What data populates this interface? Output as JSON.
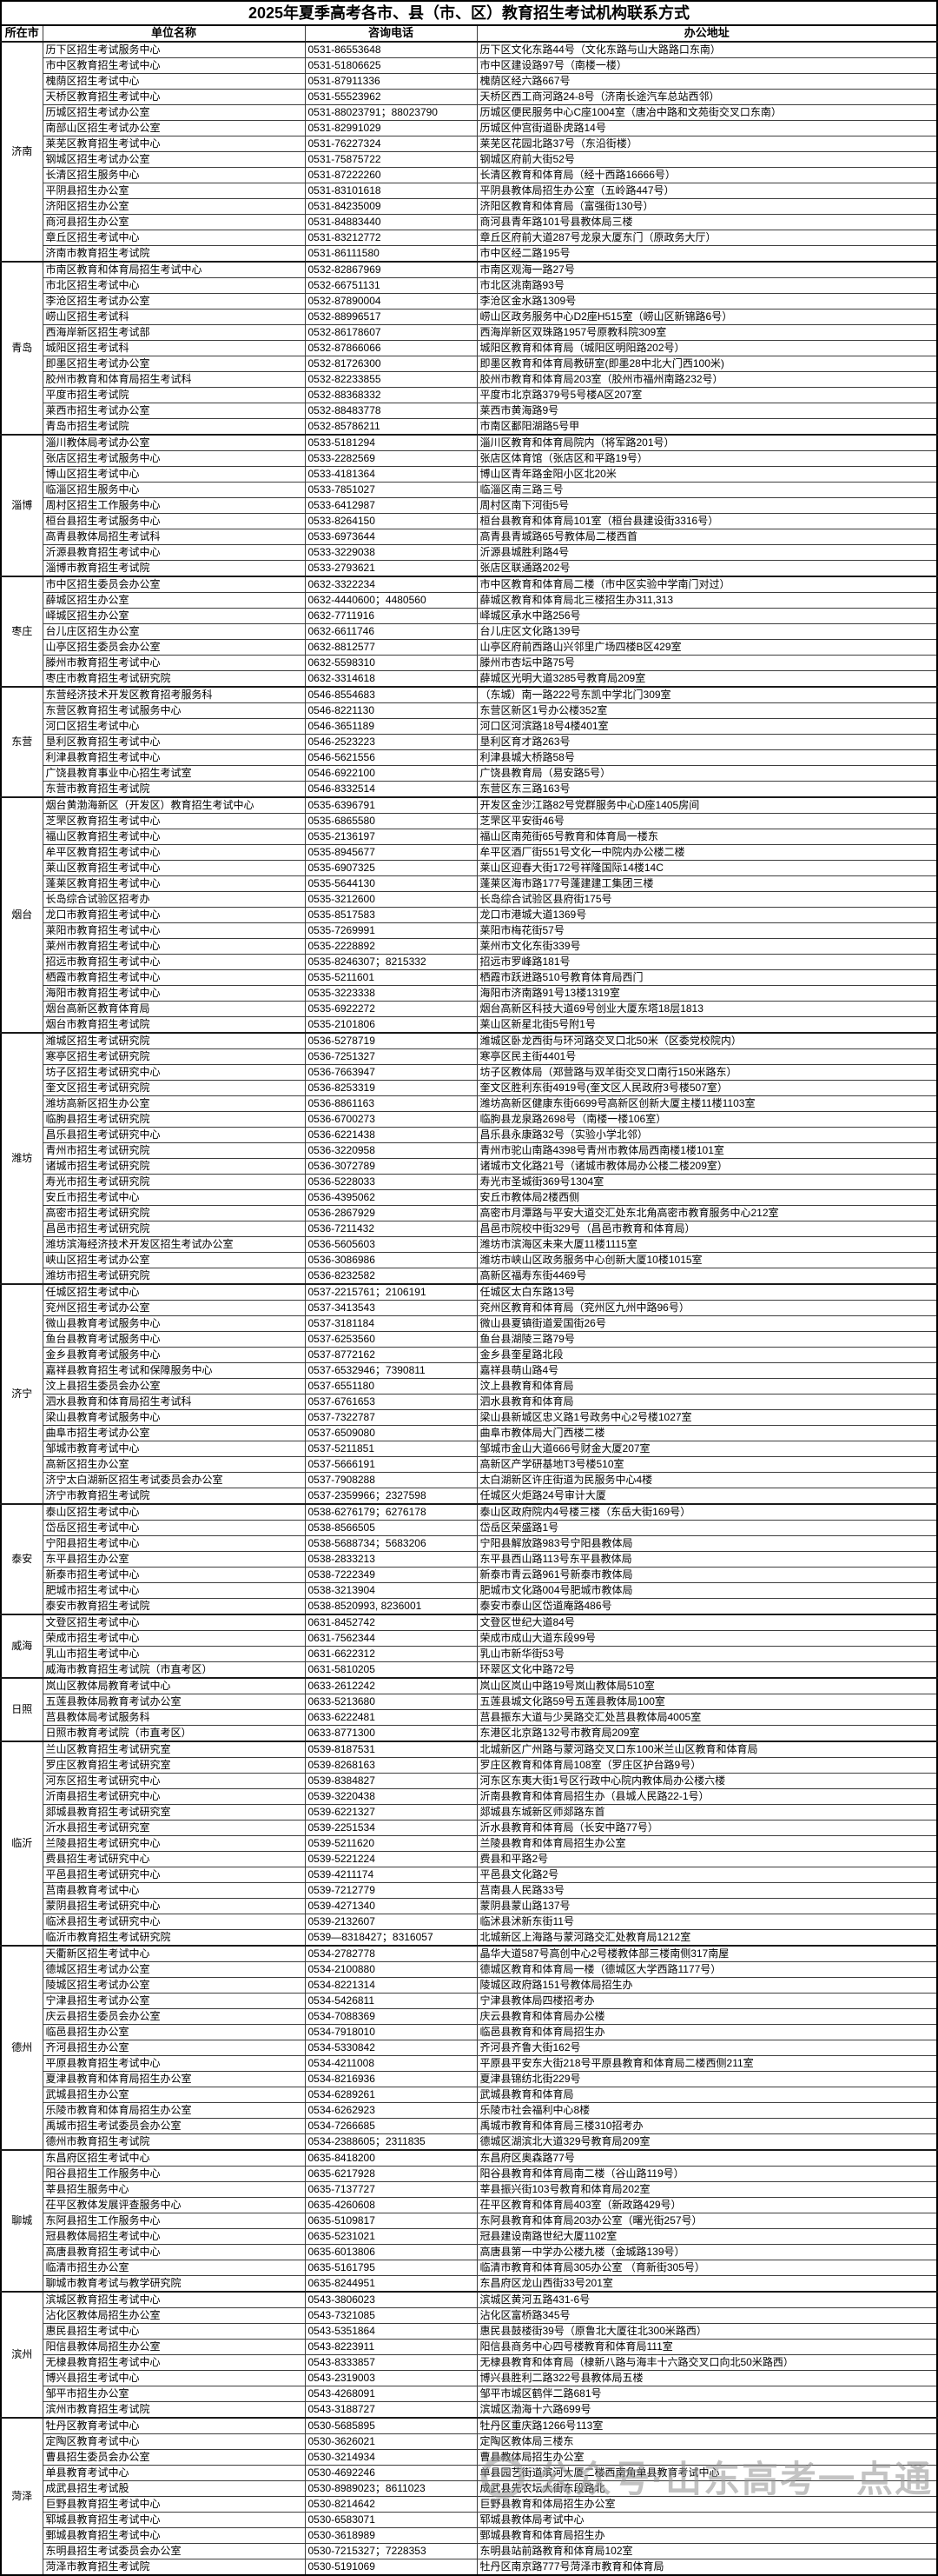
{
  "title": "2025年夏季高考各市、县（市、区）教育招生考试机构联系方式",
  "columns": [
    "所在市",
    "单位名称",
    "咨询电话",
    "办公地址"
  ],
  "watermark": {
    "text": "公众号·山东高考一点通",
    "icon": "ring-logo"
  },
  "groups": [
    {
      "city": "济南",
      "rows": [
        [
          "历下区招生考试服务中心",
          "0531-86553648",
          "历下区文化东路44号（文化东路与山大路路口东南）"
        ],
        [
          "市中区教育招生考试中心",
          "0531-51806625",
          "市中区建设路97号（南楼一楼）"
        ],
        [
          "槐荫区招生考试中心",
          "0531-87911336",
          "槐荫区经六路667号"
        ],
        [
          "天桥区教育招生考试中心",
          "0531-55523962",
          "天桥区西工商河路24-8号（济南长途汽车总站西邻）"
        ],
        [
          "历城区招生考试办公室",
          "0531-88023791；88023790",
          "历城区便民服务中心C座1004室（唐冶中路和文苑街交叉口东南）"
        ],
        [
          "南部山区招生考试办公室",
          "0531-82991029",
          "历城区仲宫街道卧虎路14号"
        ],
        [
          "莱芜区教育招生考试中心",
          "0531-76227324",
          "莱芜区花园北路37号（东沿街楼）"
        ],
        [
          "钢城区招生考试办公室",
          "0531-75875722",
          "钢城区府前大街52号"
        ],
        [
          "长清区招生服务中心",
          "0531-87222260",
          "长清区教育和体育局（经十西路16666号）"
        ],
        [
          "平阴县招生办公室",
          "0531-83101618",
          "平阴县教体局招生办公室（五岭路447号）"
        ],
        [
          "济阳区招生办公室",
          "0531-84235009",
          "济阳区教育和体育局（富强街130号）"
        ],
        [
          "商河县招生办公室",
          "0531-84883440",
          "商河县青年路101号县教体局三楼"
        ],
        [
          "章丘区招生考试中心",
          "0531-83212772",
          "章丘区府前大道287号龙泉大厦东门（原政务大厅）"
        ],
        [
          "济南市教育招生考试院",
          "0531-86111580",
          "市中区经二路195号"
        ]
      ]
    },
    {
      "city": "青岛",
      "rows": [
        [
          "市南区教育和体育局招生考试中心",
          "0532-82867969",
          "市南区观海一路27号"
        ],
        [
          "市北区招生考试中心",
          "0532-66751131",
          "市北区洮南路93号"
        ],
        [
          "李沧区招生考试办公室",
          "0532-87890004",
          "李沧区金水路1309号"
        ],
        [
          "崂山区招生考试科",
          "0532-88996517",
          "崂山区政务服务中心D2座H515室（崂山区新锦路6号）"
        ],
        [
          "西海岸新区招生考试部",
          "0532-86178607",
          "西海岸新区双珠路1957号原教科院309室"
        ],
        [
          "城阳区招生考试科",
          "0532-87866066",
          "城阳区教育和体育局（城阳区明阳路202号）"
        ],
        [
          "即墨区招生考试办公室",
          "0532-81726300",
          "即墨区教育和体育局教研室(即墨28中北大门西100米)"
        ],
        [
          "胶州市教育和体育局招生考试科",
          "0532-82233855",
          "胶州市教育和体育局203室（胶州市福州南路232号）"
        ],
        [
          "平度市招生考试院",
          "0532-88368332",
          "平度市北京路379号5号楼A区207室"
        ],
        [
          "莱西市招生考试办公室",
          "0532-88483778",
          "莱西市黄海路9号"
        ],
        [
          "青岛市招生考试院",
          "0532-85786211",
          "市南区鄱阳湖路5号甲"
        ]
      ]
    },
    {
      "city": "淄博",
      "rows": [
        [
          "淄川教体局考试办公室",
          "0533-5181294",
          "淄川区教育和体育局院内（将军路201号）"
        ],
        [
          "张店区招生考试服务中心",
          "0533-2282569",
          "张店区体育馆（张店区和平路19号）"
        ],
        [
          "博山区招生考试中心",
          "0533-4181364",
          "博山区青年路金阳小区北20米"
        ],
        [
          "临淄区招生服务中心",
          "0533-7851027",
          "临淄区南三路三号"
        ],
        [
          "周村区招生工作服务中心",
          "0533-6412987",
          "周村区南下河街5号"
        ],
        [
          "桓台县招生考试服务中心",
          "0533-8264150",
          "桓台县教育和体育局101室（桓台县建设街3316号）"
        ],
        [
          "高青县教体局招生考试科",
          "0533-6973644",
          "高青县青城路65号教体局二楼西首"
        ],
        [
          "沂源县教育招生考试中心",
          "0533-3229038",
          "沂源县城胜利路4号"
        ],
        [
          "淄博市教育招生考试院",
          "0533-2793621",
          "张店区联通路202号"
        ]
      ]
    },
    {
      "city": "枣庄",
      "rows": [
        [
          "市中区招生委员会办公室",
          "0632-3322234",
          "市中区教育和体育局二楼（市中区实验中学南门对过）"
        ],
        [
          "薛城区招生办公室",
          "0632-4440600；4480560",
          "薛城区教育和体育局北三楼招生办311,313"
        ],
        [
          "峄城区招生办公室",
          "0632-7711916",
          "峄城区承水中路256号"
        ],
        [
          "台儿庄区招生办公室",
          "0632-6611746",
          "台儿庄区文化路139号"
        ],
        [
          "山亭区招生委员会办公室",
          "0632-8812577",
          "山亭区府前西路山兴邻里广场四楼B区429室"
        ],
        [
          "滕州市教育招生考试中心",
          "0632-5598310",
          "滕州市杏坛中路75号"
        ],
        [
          "枣庄市教育招生考试研究院",
          "0632-3314618",
          "薛城区光明大道3285号教育局209室"
        ]
      ]
    },
    {
      "city": "东营",
      "rows": [
        [
          "东营经济技术开发区教育招考服务科",
          "0546-8554683",
          "（东城）南一路222号东凯中学北门309室"
        ],
        [
          "东营区教育招生考试服务中心",
          "0546-8221130",
          "东营区新区1号办公楼352室"
        ],
        [
          "河口区招生考试中心",
          "0546-3651189",
          "河口区河滨路18号4楼401室"
        ],
        [
          "垦利区教育招生考试中心",
          "0546-2523223",
          "垦利区育才路263号"
        ],
        [
          "利津县教育招生考试中心",
          "0546-5621556",
          "利津县城大桥路58号"
        ],
        [
          "广饶县教育事业中心招生考试室",
          "0546-6922100",
          "广饶县教育局（易安路5号）"
        ],
        [
          "东营市教育招生考试院",
          "0546-8332514",
          "东营区东三路163号"
        ]
      ]
    },
    {
      "city": "烟台",
      "rows": [
        [
          "烟台黄渤海新区（开发区）教育招生考试中心",
          "0535-6396791",
          "开发区金沙江路82号党群服务中心D座1405房间"
        ],
        [
          "芝罘区教育招生考试中心",
          "0535-6865580",
          "芝罘区平安街46号"
        ],
        [
          "福山区教育招生考试中心",
          "0535-2136197",
          "福山区南苑街65号教育和体育局一楼东"
        ],
        [
          "牟平区教育招生考试中心",
          "0535-8945677",
          "牟平区酒厂街551号文化一中院内办公楼二楼"
        ],
        [
          "莱山区教育招生考试中心",
          "0535-6907325",
          "莱山区迎春大街172号祥隆国际14楼14C"
        ],
        [
          "蓬莱区教育招生考试中心",
          "0535-5644130",
          "蓬莱区海市路177号蓬建建工集团三楼"
        ],
        [
          "长岛综合试验区招考办",
          "0535-3212600",
          "长岛综合试验区县府街175号"
        ],
        [
          "龙口市教育招生考试中心",
          "0535-8517583",
          "龙口市港城大道1369号"
        ],
        [
          "莱阳市教育招生考试中心",
          "0535-7269991",
          "莱阳市梅花街57号"
        ],
        [
          "莱州市教育招生考试中心",
          "0535-2228892",
          "莱州市文化东街339号"
        ],
        [
          "招远市教育招生考试中心",
          "0535-8246307；8215332",
          "招远市罗峰路181号"
        ],
        [
          "栖霞市教育招生考试中心",
          "0535-5211601",
          "栖霞市跃进路510号教育体育局西门"
        ],
        [
          "海阳市教育招生考试中心",
          "0535-3223338",
          "海阳市济南路91号13楼1319室"
        ],
        [
          "烟台高新区教育体育局",
          "0535-6922272",
          "烟台高新区科技大道69号创业大厦东塔18层1813"
        ],
        [
          "烟台市教育招生考试院",
          "0535-2101806",
          "莱山区新星北街5号附1号"
        ]
      ]
    },
    {
      "city": "潍坊",
      "rows": [
        [
          "潍城区招生考试研究院",
          "0536-5278719",
          "潍城区卧龙西街与环河路交叉口北50米（区委党校院内）"
        ],
        [
          "寒亭区招生考试研究院",
          "0536-7251327",
          "寒亭区民主街4401号"
        ],
        [
          "坊子区招生考试研究中心",
          "0536-7663947",
          "坊子区教体局（郑营路与双羊街交叉口南行150米路东）"
        ],
        [
          "奎文区招生考试研究院",
          "0536-8253319",
          "奎文区胜利东街4919号(奎文区人民政府3号楼507室）"
        ],
        [
          "潍坊高新区招生办公室",
          "0536-8861163",
          "潍坊高新区健康东街6699号高新区创新大厦主楼11楼1103室"
        ],
        [
          "临朐县招生考试研究院",
          "0536-6700273",
          "临朐县龙泉路2698号（南楼一楼106室）"
        ],
        [
          "昌乐县招生考试研究中心",
          "0536-6221438",
          "昌乐县永康路32号（实验小学北邻）"
        ],
        [
          "青州市招生考试研究院",
          "0536-3220958",
          "青州市驼山南路4398号青州市教体局西南楼1楼101室"
        ],
        [
          "诸城市招生考试研究院",
          "0536-3072789",
          "诸城市文化路21号（诸城市教体局办公楼二楼209室）"
        ],
        [
          "寿光市招生考试研究院",
          "0536-5228033",
          "寿光市圣城街369号1304室"
        ],
        [
          "安丘市招生考试中心",
          "0536-4395062",
          "安丘市教体局2楼西侧"
        ],
        [
          "高密市招生考试研究院",
          "0536-2867929",
          "高密市月潭路与平安大道交汇处东北角高密市教育服务中心212室"
        ],
        [
          "昌邑市招生考试研究院",
          "0536-7211432",
          "昌邑市院校中街329号（昌邑市教育和体育局）"
        ],
        [
          "潍坊滨海经济技术开发区招生考试办公室",
          "0536-5605603",
          "潍坊市滨海区未来大厦11楼1115室"
        ],
        [
          "峡山区招生考试办公室",
          "0536-3086986",
          "潍坊市峡山区政务服务中心创新大厦10楼1015室"
        ],
        [
          "潍坊市招生考试研究院",
          "0536-8232582",
          "高新区福寿东街4469号"
        ]
      ]
    },
    {
      "city": "济宁",
      "rows": [
        [
          "任城区招生考试中心",
          "0537-2215761；2106191",
          "任城区太白东路13号"
        ],
        [
          "兖州区招生考试办公室",
          "0537-3413543",
          "兖州区教育和体育局（兖州区九州中路96号）"
        ],
        [
          "微山县教育考试服务中心",
          "0537-3181184",
          "微山县夏镇街道爱国街26号"
        ],
        [
          "鱼台县教育考试服务中心",
          "0537-6253560",
          "鱼台县湖陵三路79号"
        ],
        [
          "金乡县教育考试服务中心",
          "0537-8772162",
          "金乡县奎星路北段"
        ],
        [
          "嘉祥县教育招生考试和保障服务中心",
          "0537-6532946；7390811",
          "嘉祥县萌山路4号"
        ],
        [
          "汶上县招生委员会办公室",
          "0537-6551180",
          "汶上县教育和体育局"
        ],
        [
          "泗水县教育和体育局招生考试科",
          "0537-6761653",
          "泗水县教育和体育局"
        ],
        [
          "梁山县教育考试服务中心",
          "0537-7322787",
          "梁山县新城区忠义路1号政务中心2号楼1027室"
        ],
        [
          "曲阜市招生考试办公室",
          "0537-6509080",
          "曲阜市教体局大门西楼二楼"
        ],
        [
          "邹城市教育考试中心",
          "0537-5211851",
          "邹城市金山大道666号财金大厦207室"
        ],
        [
          "高新区招生办公室",
          "0537-5666191",
          "高新区产学研基地T3号楼510室"
        ],
        [
          "济宁太白湖新区招生考试委员会办公室",
          "0537-7908288",
          "太白湖新区许庄街道为民服务中心4楼"
        ],
        [
          "济宁市教育招生考试院",
          "0537-2359966；2327598",
          "任城区火炬路24号审计大厦"
        ]
      ]
    },
    {
      "city": "泰安",
      "rows": [
        [
          "泰山区招生考试中心",
          "0538-6276179；6276178",
          "泰山区政府院内4号楼三楼（东岳大街169号）"
        ],
        [
          "岱岳区招生考试中心",
          "0538-8566505",
          "岱岳区荣盛路1号"
        ],
        [
          "宁阳县招生考试中心",
          "0538-5688734；5683206",
          "宁阳县解放路983号宁阳县教体局"
        ],
        [
          "东平县招生办公室",
          "0538-2833213",
          "东平县西山路113号东平县教体局"
        ],
        [
          "新泰市招生考试中心",
          "0538-7222349",
          "新泰市青云路961号新泰市教体局"
        ],
        [
          "肥城市招生考试中心",
          "0538-3213904",
          "肥城市文化路004号肥城市教体局"
        ],
        [
          "泰安市教育招生考试院",
          "0538-8520993, 8236001",
          "泰安市泰山区岱道庵路486号"
        ]
      ]
    },
    {
      "city": "威海",
      "rows": [
        [
          "文登区招生考试中心",
          "0631-8452742",
          "文登区世纪大道84号"
        ],
        [
          "荣成市招生考试中心",
          "0631-7562344",
          "荣成市成山大道东段99号"
        ],
        [
          "乳山市招生考试中心",
          "0631-6622312",
          "乳山市新华街53号"
        ],
        [
          "威海市教育招生考试院（市直考区）",
          "0631-5810205",
          "环翠区文化中路72号"
        ]
      ]
    },
    {
      "city": "日照",
      "rows": [
        [
          "岚山区教体局教育考试中心",
          "0633-2612242",
          "岚山区岚山中路19号岚山教体局510室"
        ],
        [
          "五莲县教体局教育考试办公室",
          "0633-5213680",
          "五莲县城文化路59号五莲县教体局100室"
        ],
        [
          "莒县教体局考试服务科",
          "0633-6222481",
          "莒县振东大道与少昊路交汇处莒县教体局4005室"
        ],
        [
          "日照市教育考试院（市直考区）",
          "0633-8771300",
          "东港区北京路132号市教育局209室"
        ]
      ]
    },
    {
      "city": "临沂",
      "rows": [
        [
          "兰山区教育招生考试研究室",
          "0539-8187531",
          "北城新区广州路与蒙河路交叉口东100米兰山区教育和体育局"
        ],
        [
          "罗庄区教育招生考试研究室",
          "0539-8268163",
          "罗庄区教育和体育局108室（罗庄区护台路9号）"
        ],
        [
          "河东区招生考试研究中心",
          "0539-8384827",
          "河东区东夷大街1号区行政中心院内教体局办公楼六楼"
        ],
        [
          "沂南县招生考试研究中心",
          "0539-3220438",
          "沂南县教育和体育局招生办（县城人民路22-1号）"
        ],
        [
          "郯城县教育招生考试研究室",
          "0539-6221327",
          "郯城县东城新区师郯路东首"
        ],
        [
          "沂水县招生考试研究室",
          "0539-2251534",
          "沂水县教育和体育局（长安中路77号）"
        ],
        [
          "兰陵县招生考试研究中心",
          "0539-5211620",
          "兰陵县教育和体育局招生办公室"
        ],
        [
          "费县招生考试研究中心",
          "0539-5221224",
          "费县和平路2号"
        ],
        [
          "平邑县招生考试研究中心",
          "0539-4211174",
          "平邑县文化路2号"
        ],
        [
          "莒南县教育考试中心",
          "0539-7212779",
          "莒南县人民路33号"
        ],
        [
          "蒙阴县招生考试研究中心",
          "0539-4271340",
          "蒙阴县蒙山路137号"
        ],
        [
          "临沭县招生考试研究中心",
          "0539-2132607",
          "临沭县沭新东街11号"
        ],
        [
          "临沂市教育招生考试研究院",
          "0539—8318427；8316057",
          "北城新区上海路与蒙河路交汇处教育局1212室"
        ]
      ]
    },
    {
      "city": "德州",
      "rows": [
        [
          "天衢新区招生考试中心",
          "0534-2782778",
          "晶华大道587号高创中心2号楼教体部三楼南侧317南屋"
        ],
        [
          "德城区招生考试办公室",
          "0534-2100880",
          "德城区教育和体育局一楼（德城区大学西路1177号）"
        ],
        [
          "陵城区招生考试办公室",
          "0534-8221314",
          "陵城区政府路151号教体局招生办"
        ],
        [
          "宁津县招生考试办公室",
          "0534-5426811",
          "宁津县教体局四楼招考办"
        ],
        [
          "庆云县招生委员会办公室",
          "0534-7088369",
          "庆云县教育和体育局办公楼"
        ],
        [
          "临邑县招生办公室",
          "0534-7918010",
          "临邑县教育和体育局招生办"
        ],
        [
          "齐河县招生办公室",
          "0534-5330842",
          "齐河县齐鲁大街162号"
        ],
        [
          "平原县教育招生考试中心",
          "0534-4211008",
          "平原县平安东大街218号平原县教育和体育局二楼西侧211室"
        ],
        [
          "夏津县教育和体育局招生办公室",
          "0534-8216936",
          "夏津县锦纺北街229号"
        ],
        [
          "武城县招生办公室",
          "0534-6289261",
          "武城县教育和体育局"
        ],
        [
          "乐陵市教育和体育局招生办公室",
          "0534-6262923",
          "乐陵市社会福利中心8楼"
        ],
        [
          "禹城市招生考试委员会办公室",
          "0534-7266685",
          "禹城市教育和体育局三楼310招考办"
        ],
        [
          "德州市教育招生考试院",
          "0534-2388605；2311835",
          "德城区湖滨北大道329号教育局209室"
        ]
      ]
    },
    {
      "city": "聊城",
      "rows": [
        [
          "东昌府区招生考试中心",
          "0635-8418200",
          "东昌府区奥森路77号"
        ],
        [
          "阳谷县招生工作服务中心",
          "0635-6217928",
          "阳谷县教育和体育局南二楼（谷山路119号）"
        ],
        [
          "莘县招生服务中心",
          "0635-7137727",
          "莘县振兴街103号教育和体育局202室"
        ],
        [
          "茌平区教体发展评查服务中心",
          "0635-4260608",
          "茌平区教育和体育局403室（新政路429号）"
        ],
        [
          "东阿县招生工作服务中心",
          "0635-5109817",
          "东阿县教育和体育局203办公室（曙光街257号）"
        ],
        [
          "冠县教体局招生考试中心",
          "0635-5231021",
          "冠县建设南路世纪大厦1102室"
        ],
        [
          "高唐县教育招生考试中心",
          "0635-6013806",
          "高唐县第一中学办公楼九楼（金城路139号）"
        ],
        [
          "临清市招生办公室",
          "0635-5161795",
          "临清市教育和体育局305办公室 （育新街305号）"
        ],
        [
          "聊城市教育考试与教学研究院",
          "0635-8244951",
          "东昌府区龙山西街33号201室"
        ]
      ]
    },
    {
      "city": "滨州",
      "rows": [
        [
          "滨城区教育招生考试中心",
          "0543-3806023",
          "滨城区黄河五路431-6号"
        ],
        [
          "沾化区教体局招生办公室",
          "0543-7321085",
          "沾化区富桥路345号"
        ],
        [
          "惠民县招生考试中心",
          "0543-5351864",
          "惠民县鼓楼街39号（原鲁北大厦往北300米路西）"
        ],
        [
          "阳信县教体局招生办公室",
          "0543-8223911",
          "阳信县商务中心四号楼教育和体育局111室"
        ],
        [
          "无棣县教育招生考试中心",
          "0543-8333857",
          "无棣县教育和体育局（棣新八路与海丰十六路交叉口向北50米路西）"
        ],
        [
          "博兴县招生考试中心",
          "0543-2319003",
          "博兴县胜利二路322号县教体局五楼"
        ],
        [
          "邹平市招生办公室",
          "0543-4268091",
          "邹平市城区鹤伴二路681号"
        ],
        [
          "滨州市教育招生考试院",
          "0543-3188727",
          "滨城区渤海十六路699号"
        ]
      ]
    },
    {
      "city": "菏泽",
      "rows": [
        [
          "牡丹区教育考试中心",
          "0530-5685895",
          "牡丹区重庆路1266号113室"
        ],
        [
          "定陶区教育考试中心",
          "0530-3626021",
          "定陶区教体局三楼东"
        ],
        [
          "曹县招生委员会办公室",
          "0530-3214934",
          "曹县教体局招生办公室"
        ],
        [
          "单县教育考试中心",
          "0530-4692246",
          "单县园艺街道滨河大厦二楼西南角单县教育考试中心"
        ],
        [
          "成武县招生考试股",
          "0530-8989023；8611023",
          "成武县先农坛大街东段路北"
        ],
        [
          "巨野县教育招生考试中心",
          "0530-8214642",
          "巨野县教育和体局招生办公室"
        ],
        [
          "郓城县教育招生考试中心",
          "0530-6583071",
          "郓城县教体局考试中心"
        ],
        [
          "鄄城县教育招生考试中心",
          "0530-3618989",
          "鄄城县教育和体育局招生办"
        ],
        [
          "东明县招生考试委员会办公室",
          "0530-7215327；7228353",
          "东明县站前路教育和体育局102室"
        ],
        [
          "菏泽市教育招生考试院",
          "0530-5191069",
          "牡丹区南京路777号菏泽市教育和体育局"
        ]
      ]
    }
  ]
}
